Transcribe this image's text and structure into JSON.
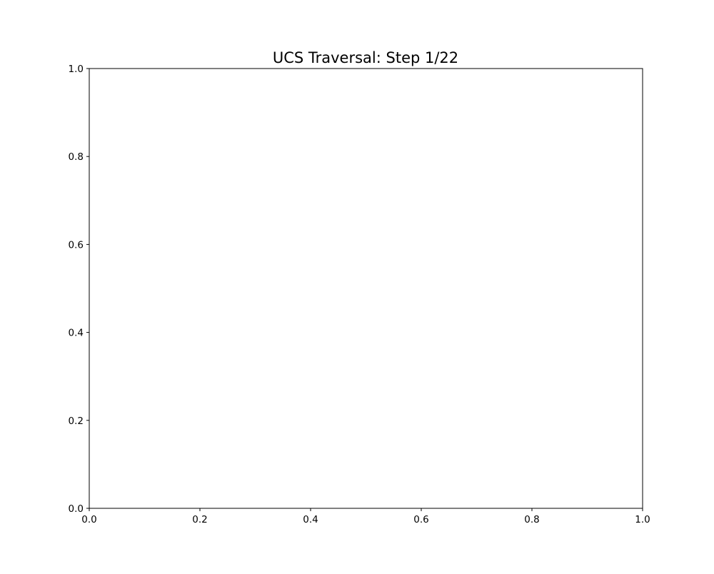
{
  "chart_data": {
    "type": "scatter",
    "title": "UCS Traversal: Step 1/22",
    "xlabel": "",
    "ylabel": "",
    "xlim": [
      0.0,
      1.0
    ],
    "ylim": [
      0.0,
      1.0
    ],
    "xticks": [
      "0.0",
      "0.2",
      "0.4",
      "0.6",
      "0.8",
      "1.0"
    ],
    "yticks": [
      "0.0",
      "0.2",
      "0.4",
      "0.6",
      "0.8",
      "1.0"
    ],
    "grid": false,
    "series": []
  },
  "colors": {
    "background": "#ffffff",
    "axes": "#000000"
  }
}
